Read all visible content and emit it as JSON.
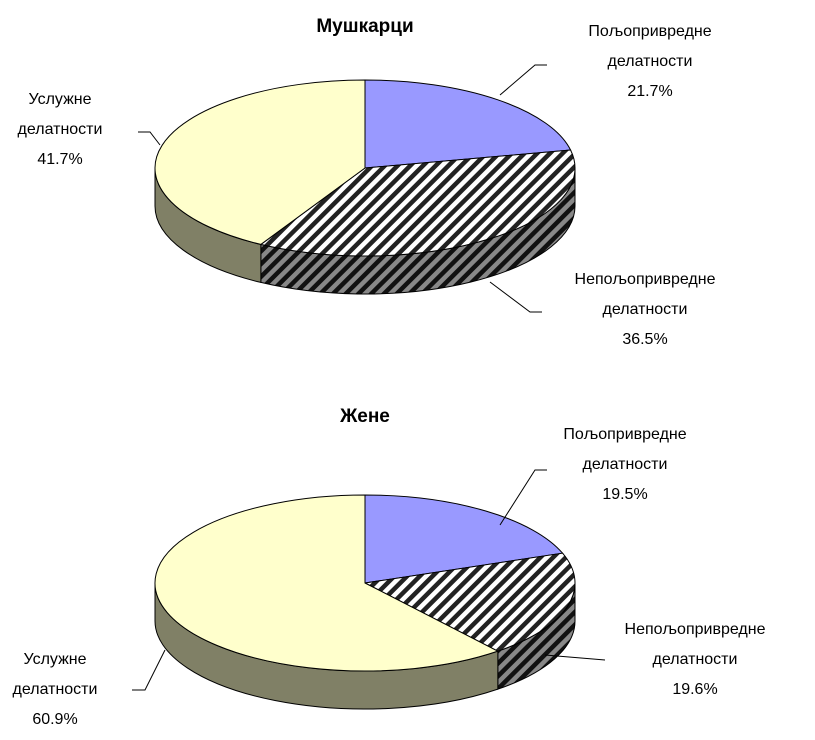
{
  "chart_data": [
    {
      "type": "pie",
      "title": "Мушкарци",
      "categories": [
        "Пољопривредне делатности",
        "Непољопривредне делатности",
        "Услужне делатности"
      ],
      "values": [
        21.7,
        36.5,
        41.7
      ],
      "value_labels": [
        "21.7%",
        "36.5%",
        "41.7%"
      ],
      "colors": [
        "#9999ff",
        "hatch",
        "#ffffcc"
      ]
    },
    {
      "type": "pie",
      "title": "Жене",
      "categories": [
        "Пољопривредне делатности",
        "Непољопривредне делатности",
        "Услужне делатности"
      ],
      "values": [
        19.5,
        19.6,
        60.9
      ],
      "value_labels": [
        "19.5%",
        "19.6%",
        "60.9%"
      ],
      "colors": [
        "#9999ff",
        "hatch",
        "#ffffcc"
      ]
    }
  ]
}
